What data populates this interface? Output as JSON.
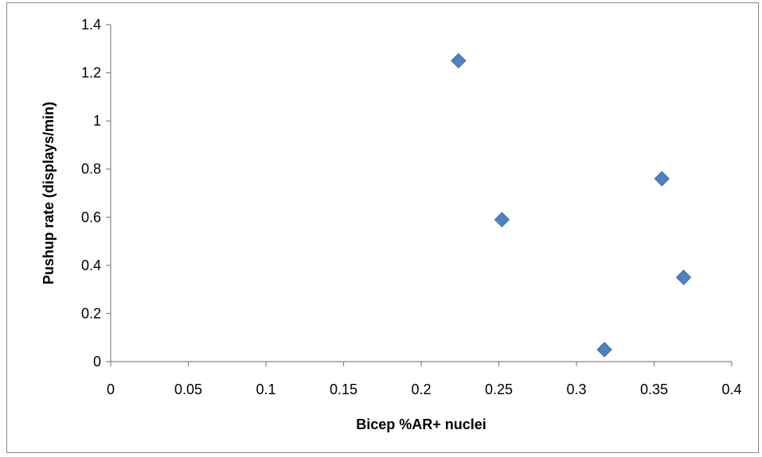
{
  "chart_data": {
    "type": "scatter",
    "title": "",
    "xlabel": "Bicep %AR+ nuclei",
    "ylabel": "Pushup rate (displays/min)",
    "xlim": [
      0,
      0.4
    ],
    "ylim": [
      0,
      1.4
    ],
    "x_ticks": [
      "0",
      "0.05",
      "0.1",
      "0.15",
      "0.2",
      "0.25",
      "0.3",
      "0.35",
      "0.4"
    ],
    "y_ticks": [
      "0",
      "0.2",
      "0.4",
      "0.6",
      "0.8",
      "1",
      "1.2",
      "1.4"
    ],
    "grid": false,
    "legend": "none",
    "marker": "diamond",
    "series": [
      {
        "color": "#4F81BD",
        "points": [
          {
            "x": 0.224,
            "y": 1.25
          },
          {
            "x": 0.252,
            "y": 0.59
          },
          {
            "x": 0.318,
            "y": 0.05
          },
          {
            "x": 0.355,
            "y": 0.76
          },
          {
            "x": 0.369,
            "y": 0.35
          }
        ]
      }
    ]
  }
}
